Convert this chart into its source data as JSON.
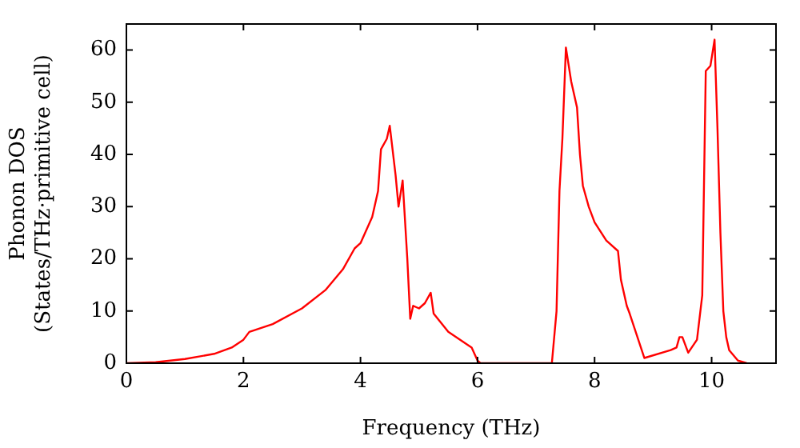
{
  "chart_data": {
    "type": "line",
    "xlabel": "Frequency (THz)",
    "ylabel": "Phonon DOS\n(States/THz·primitive cell)",
    "x": [
      0,
      0.5,
      1.0,
      1.5,
      1.8,
      2.0,
      2.1,
      2.5,
      3.0,
      3.4,
      3.7,
      3.9,
      4.0,
      4.2,
      4.3,
      4.35,
      4.45,
      4.5,
      4.6,
      4.65,
      4.72,
      4.8,
      4.85,
      4.9,
      5.0,
      5.1,
      5.2,
      5.25,
      5.5,
      5.9,
      6.0,
      6.05,
      7.27,
      7.35,
      7.4,
      7.45,
      7.51,
      7.6,
      7.7,
      7.75,
      7.8,
      7.9,
      8.0,
      8.2,
      8.4,
      8.45,
      8.55,
      8.6,
      8.85,
      9.3,
      9.4,
      9.45,
      9.5,
      9.6,
      9.75,
      9.84,
      9.9,
      9.98,
      10.05,
      10.1,
      10.15,
      10.2,
      10.25,
      10.3,
      10.45,
      10.6
    ],
    "series": [
      {
        "color": "#ff0000",
        "values": [
          0,
          0.2,
          0.8,
          1.8,
          3,
          4.5,
          6,
          7.5,
          10.5,
          14,
          18,
          22,
          23,
          28,
          33,
          41,
          43,
          45.5,
          36,
          30,
          35,
          20,
          8.5,
          11,
          10.5,
          11.5,
          13.5,
          9.5,
          6,
          3,
          0.5,
          0,
          0,
          10,
          33,
          43,
          60.5,
          54,
          49,
          40,
          34,
          30,
          27,
          23.5,
          21.5,
          16,
          11,
          9.5,
          1,
          2.5,
          3,
          5,
          5,
          2,
          4.5,
          13,
          56,
          57,
          62,
          45,
          25,
          10,
          5,
          2.5,
          0.5,
          0
        ]
      }
    ],
    "xlim": [
      0,
      11.1
    ],
    "xticks": [
      0,
      2,
      4,
      6,
      8,
      10
    ],
    "ylim": [
      0,
      65
    ],
    "yticks": [
      0,
      10,
      20,
      30,
      40,
      50,
      60
    ],
    "grid": false,
    "legend": false,
    "marker": "none",
    "line_style": "solid"
  }
}
